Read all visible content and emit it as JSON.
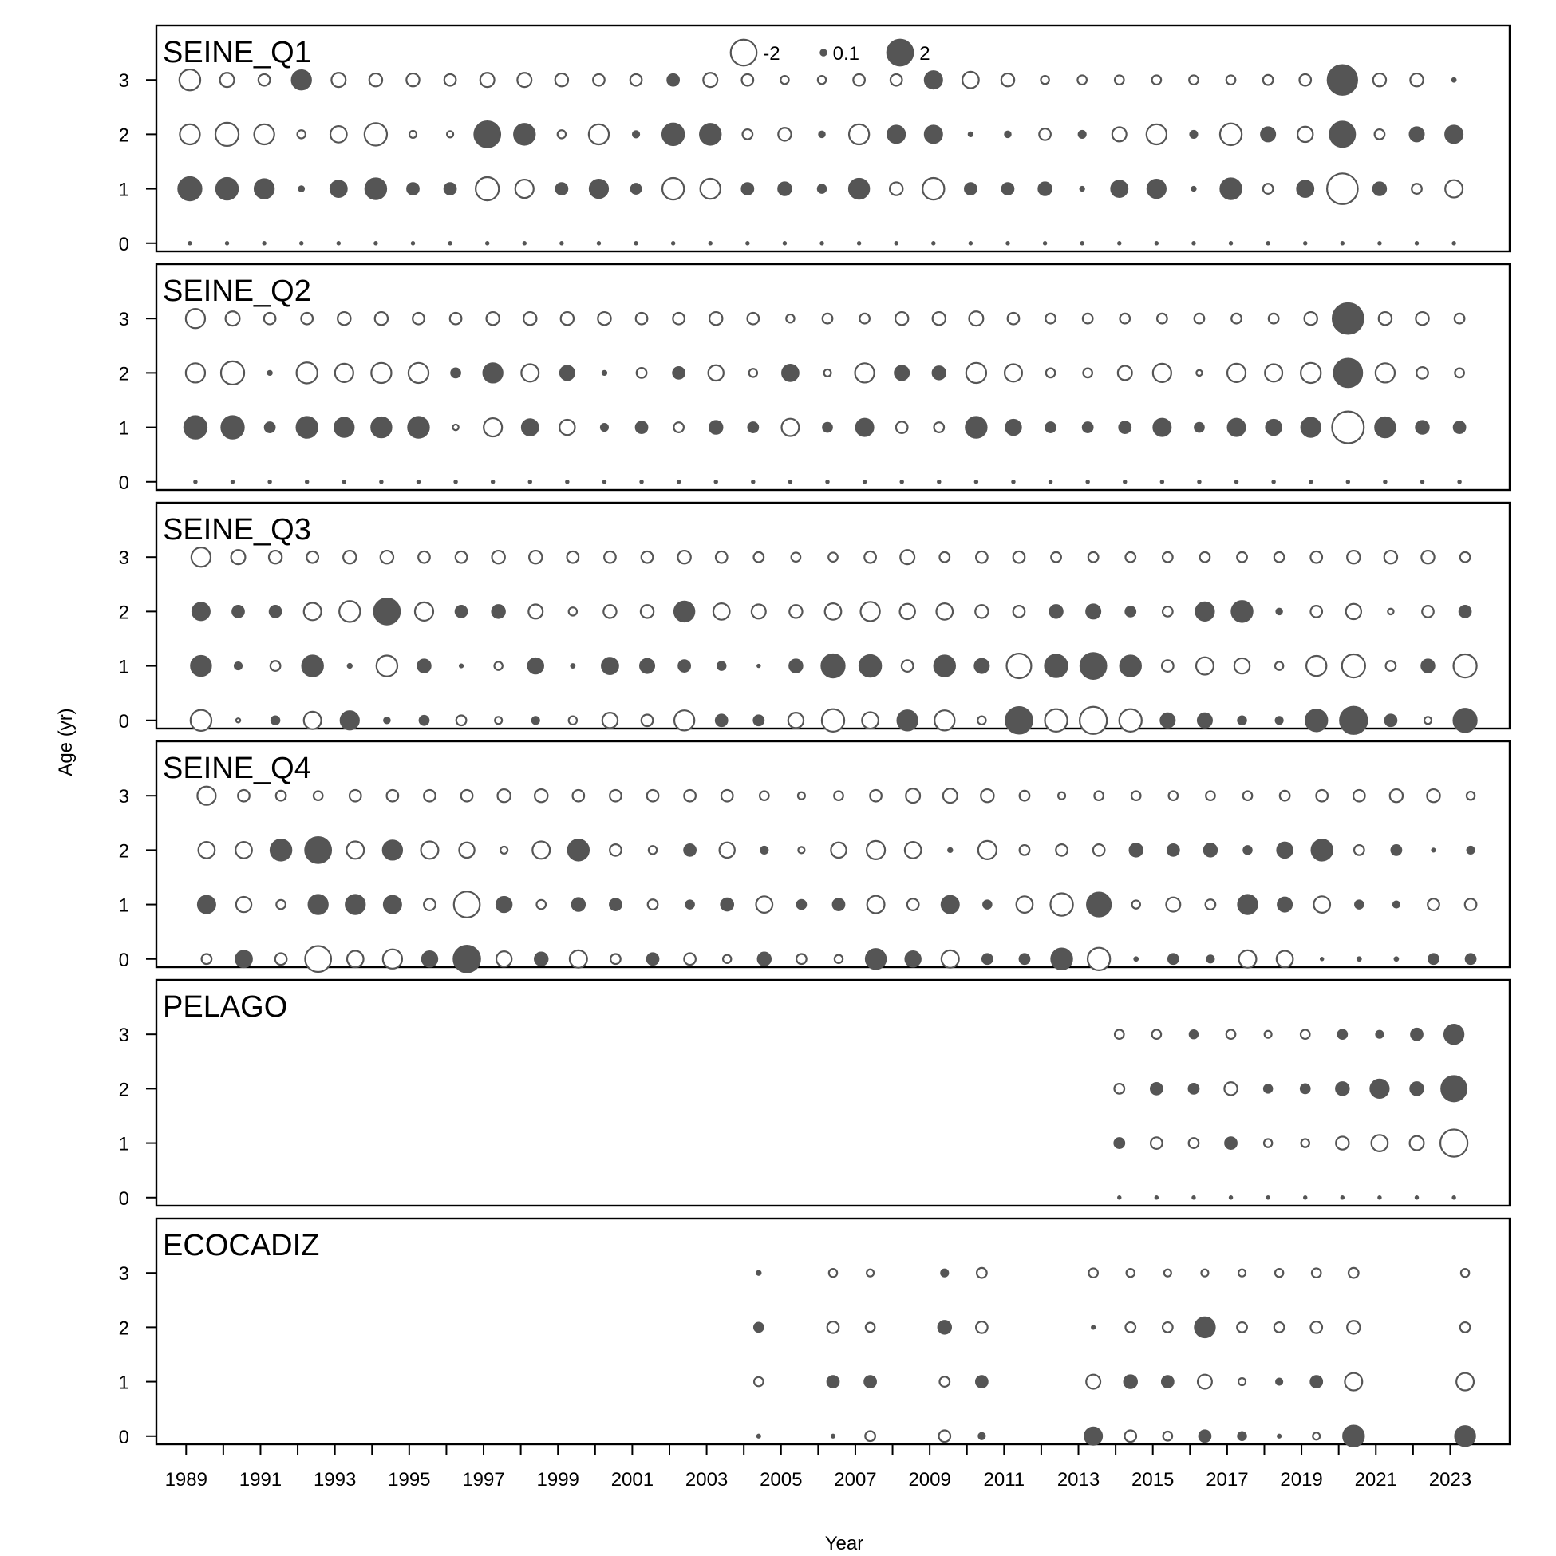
{
  "chart_data": {
    "type": "bubble",
    "xlabel": "Year",
    "ylabel": "Age (yr)",
    "x_ticks": [
      1989,
      1991,
      1993,
      1995,
      1997,
      1999,
      2001,
      2003,
      2005,
      2007,
      2009,
      2011,
      2013,
      2015,
      2017,
      2019,
      2021,
      2023
    ],
    "y_ticks": [
      0,
      1,
      2,
      3
    ],
    "xlim": [
      1988.2,
      2024.6
    ],
    "ylim": [
      -0.15,
      4.0
    ],
    "legend": {
      "position": "top-center",
      "entries": [
        {
          "label": "-2",
          "value": -2,
          "filled": false
        },
        {
          "label": "0.1",
          "value": 0.1,
          "filled": true
        },
        {
          "label": "2",
          "value": 2,
          "filled": true
        }
      ]
    },
    "colors": {
      "positive_fill": "#555555",
      "negative_fill": "#ffffff",
      "stroke": "#555555"
    },
    "panels": [
      {
        "name": "SEINE_Q1",
        "x_offset": 0.1,
        "start_year": 1989,
        "ages": [
          0,
          1,
          2,
          3
        ],
        "residuals": [
          [
            0.02,
            0.02,
            0.02,
            0.02,
            0.02,
            0.02,
            0.02,
            0.02,
            0.02,
            0.02,
            0.02,
            0.02,
            0.02,
            0.02,
            0.02,
            0.02,
            0.02,
            0.02,
            0.02,
            0.02,
            0.02,
            0.02,
            0.02,
            0.02,
            0.02,
            0.02,
            0.02,
            0.02,
            0.02,
            0.02,
            0.02,
            0.02,
            0.02,
            0.02,
            0.02
          ],
          [
            1.6,
            1.4,
            1.1,
            0.08,
            0.8,
            1.3,
            0.4,
            0.4,
            -1.6,
            -1.0,
            0.4,
            1.0,
            0.3,
            -1.4,
            -1.2,
            0.4,
            0.5,
            0.2,
            1.2,
            -0.5,
            -1.4,
            0.4,
            0.4,
            0.5,
            0.05,
            0.8,
            1.0,
            0.05,
            1.3,
            -0.3,
            0.8,
            -2.8,
            0.5,
            -0.3,
            -0.9
          ],
          [
            -1.2,
            -1.6,
            -1.2,
            -0.2,
            -0.8,
            -1.5,
            -0.15,
            -0.12,
            2.0,
            1.3,
            -0.2,
            -1.2,
            0.12,
            1.4,
            1.3,
            -0.3,
            -0.5,
            0.1,
            -1.2,
            0.9,
            0.9,
            0.05,
            0.1,
            -0.4,
            0.15,
            -0.6,
            -1.2,
            0.15,
            -1.4,
            0.6,
            -0.7,
            1.9,
            -0.3,
            0.6,
            0.9
          ],
          [
            -1.3,
            -0.6,
            -0.4,
            1.1,
            -0.6,
            -0.5,
            -0.5,
            -0.4,
            -0.6,
            -0.6,
            -0.5,
            -0.4,
            -0.4,
            0.4,
            -0.6,
            -0.4,
            -0.2,
            -0.2,
            -0.4,
            -0.4,
            0.9,
            -0.8,
            -0.5,
            -0.2,
            -0.25,
            -0.25,
            -0.25,
            -0.25,
            -0.25,
            -0.3,
            -0.4,
            2.6,
            -0.5,
            -0.5,
            0.04
          ]
        ]
      },
      {
        "name": "SEINE_Q2",
        "x_offset": 0.25,
        "start_year": 1989,
        "ages": [
          0,
          1,
          2,
          3
        ],
        "residuals": [
          [
            0.02,
            0.02,
            0.02,
            0.02,
            0.02,
            0.02,
            0.02,
            0.02,
            0.02,
            0.02,
            0.02,
            0.02,
            0.02,
            0.02,
            0.02,
            0.02,
            0.02,
            0.02,
            0.02,
            0.02,
            0.02,
            0.02,
            0.02,
            0.02,
            0.02,
            0.02,
            0.02,
            0.02,
            0.02,
            0.02,
            0.02,
            0.02,
            0.02,
            0.02,
            0.02
          ],
          [
            1.5,
            1.5,
            0.3,
            1.3,
            1.1,
            1.2,
            1.3,
            -0.1,
            -1.0,
            0.8,
            -0.7,
            0.15,
            0.4,
            -0.3,
            0.5,
            0.3,
            -0.9,
            0.25,
            0.9,
            -0.4,
            -0.3,
            1.3,
            0.7,
            0.3,
            0.3,
            0.4,
            0.9,
            0.25,
            0.9,
            0.7,
            1.1,
            -3.0,
            1.2,
            0.5,
            0.4
          ],
          [
            -1.1,
            -1.6,
            0.05,
            -1.3,
            -1.0,
            -1.2,
            -1.2,
            0.25,
            1.1,
            -0.9,
            0.6,
            0.05,
            -0.3,
            0.4,
            -0.7,
            -0.2,
            0.8,
            -0.15,
            -1.1,
            0.6,
            0.5,
            -1.2,
            -0.9,
            -0.25,
            -0.25,
            -0.6,
            -1.0,
            -0.1,
            -1.0,
            -0.9,
            -1.2,
            2.4,
            -1.1,
            -0.4,
            -0.25
          ]
        ],
        "residuals_age3": [
          -1.1,
          -0.6,
          -0.4,
          -0.4,
          -0.5,
          -0.5,
          -0.4,
          -0.4,
          -0.5,
          -0.5,
          -0.5,
          -0.5,
          -0.4,
          -0.4,
          -0.5,
          -0.4,
          -0.2,
          -0.3,
          -0.3,
          -0.5,
          -0.5,
          -0.6,
          -0.4,
          -0.3,
          -0.3,
          -0.3,
          -0.3,
          -0.3,
          -0.3,
          -0.3,
          -0.5,
          2.8,
          -0.5,
          -0.5,
          -0.3
        ]
      },
      {
        "name": "SEINE_Q3",
        "x_offset": 0.4,
        "start_year": 1989,
        "ages": [
          0,
          1,
          2,
          3
        ],
        "residuals": [
          [
            -1.3,
            -0.05,
            0.2,
            -0.9,
            1.0,
            0.1,
            0.25,
            -0.3,
            -0.15,
            0.15,
            -0.2,
            -0.7,
            -0.4,
            -1.2,
            0.4,
            0.3,
            -0.7,
            -1.5,
            -0.8,
            1.2,
            -1.2,
            -0.2,
            2.1,
            -1.5,
            -2.2,
            -1.5,
            0.6,
            0.6,
            0.2,
            0.15,
            1.4,
            2.2,
            0.4,
            -0.15,
            1.6
          ],
          [
            1.2,
            0.15,
            -0.3,
            1.3,
            0.05,
            -1.3,
            0.5,
            0.03,
            -0.2,
            0.7,
            0.04,
            0.8,
            0.6,
            0.4,
            0.2,
            0.02,
            0.5,
            1.6,
            1.4,
            -0.4,
            1.3,
            0.6,
            -1.8,
            1.5,
            2.0,
            1.3,
            -0.4,
            -0.9,
            -0.7,
            -0.2,
            -1.2,
            -1.6,
            -0.3,
            0.5,
            -1.6
          ],
          [
            0.9,
            0.4,
            0.4,
            -0.9,
            -1.3,
            2.0,
            -1.0,
            0.4,
            0.5,
            -0.6,
            -0.2,
            -0.5,
            -0.5,
            1.2,
            -0.8,
            -0.6,
            -0.5,
            -0.8,
            -1.1,
            -0.7,
            -0.8,
            -0.5,
            -0.4,
            0.5,
            0.6,
            0.3,
            -0.3,
            1.0,
            1.3,
            0.1,
            -0.4,
            -0.7,
            -0.1,
            -0.4,
            0.4
          ],
          [
            -1.1,
            -0.6,
            -0.5,
            -0.4,
            -0.5,
            -0.5,
            -0.4,
            -0.4,
            -0.5,
            -0.5,
            -0.4,
            -0.4,
            -0.4,
            -0.5,
            -0.4,
            -0.3,
            -0.25,
            -0.25,
            -0.4,
            -0.6,
            -0.3,
            -0.4,
            -0.4,
            -0.3,
            -0.3,
            -0.3,
            -0.3,
            -0.3,
            -0.3,
            -0.3,
            -0.4,
            -0.5,
            -0.5,
            -0.5,
            -0.3
          ]
        ]
      },
      {
        "name": "SEINE_Q4",
        "x_offset": 0.55,
        "start_year": 1989,
        "ages": [
          0,
          1,
          2,
          3
        ],
        "residuals": [
          [
            -0.3,
            0.8,
            -0.4,
            -2.0,
            -0.8,
            -1.1,
            0.7,
            2.1,
            -0.7,
            0.5,
            -0.9,
            -0.3,
            0.4,
            -0.4,
            -0.2,
            0.5,
            -0.3,
            -0.2,
            1.2,
            0.7,
            -0.9,
            0.3,
            0.3,
            1.3,
            -1.5,
            0.04,
            0.3,
            0.15,
            -0.9,
            -0.8,
            0.02,
            0.04,
            0.04,
            0.3,
            0.3
          ],
          [
            0.9,
            -0.7,
            -0.25,
            1.1,
            1.1,
            0.9,
            -0.4,
            -2.0,
            0.7,
            -0.25,
            0.5,
            0.4,
            -0.3,
            0.2,
            0.45,
            -0.8,
            0.25,
            0.4,
            -0.9,
            -0.4,
            0.9,
            0.2,
            -0.8,
            -1.5,
            1.7,
            -0.2,
            -0.6,
            -0.3,
            1.1,
            0.6,
            -0.8,
            0.2,
            0.12,
            -0.4,
            -0.4
          ],
          [
            -0.8,
            -0.8,
            1.3,
            2.0,
            -0.9,
            1.1,
            -0.9,
            -0.7,
            -0.15,
            -0.9,
            1.3,
            -0.4,
            -0.2,
            0.4,
            -0.7,
            0.15,
            -0.12,
            -0.7,
            -1.0,
            -0.8,
            0.05,
            -1.0,
            -0.3,
            -0.4,
            -0.4,
            0.5,
            0.4,
            0.5,
            0.2,
            0.7,
            1.3,
            -0.3,
            0.3,
            0.03,
            0.15
          ],
          [
            -1.0,
            -0.4,
            -0.3,
            -0.25,
            -0.4,
            -0.4,
            -0.4,
            -0.4,
            -0.5,
            -0.5,
            -0.4,
            -0.4,
            -0.4,
            -0.4,
            -0.4,
            -0.25,
            -0.15,
            -0.25,
            -0.4,
            -0.6,
            -0.6,
            -0.5,
            -0.3,
            -0.15,
            -0.25,
            -0.25,
            -0.25,
            -0.25,
            -0.25,
            -0.3,
            -0.4,
            -0.4,
            -0.5,
            -0.5,
            -0.2
          ]
        ]
      },
      {
        "name": "PELAGO",
        "x_offset": 0.1,
        "years": [
          2014,
          2015,
          2016,
          2017,
          2018,
          2019,
          2020,
          2021,
          2022,
          2023
        ],
        "ages": [
          0,
          1,
          2,
          3
        ],
        "residuals": [
          [
            0.02,
            0.02,
            0.02,
            0.02,
            0.02,
            0.02,
            0.02,
            0.02,
            0.02,
            0.02
          ],
          [
            0.3,
            -0.4,
            -0.3,
            0.4,
            -0.2,
            -0.2,
            -0.5,
            -0.8,
            -0.6,
            -2.2
          ],
          [
            -0.3,
            0.4,
            0.3,
            -0.5,
            0.2,
            0.25,
            0.5,
            1.0,
            0.5,
            1.9
          ],
          [
            -0.25,
            -0.25,
            0.2,
            -0.25,
            -0.15,
            -0.25,
            0.25,
            0.15,
            0.4,
            1.1
          ]
        ]
      },
      {
        "name": "ECOCADIZ",
        "x_offset": 0.4,
        "years": [
          2004,
          2006,
          2007,
          2009,
          2010,
          2013,
          2014,
          2015,
          2016,
          2017,
          2018,
          2019,
          2020,
          2023
        ],
        "ages": [
          0,
          1,
          2,
          3
        ],
        "residuals": [
          [
            0.03,
            0.03,
            -0.3,
            -0.4,
            0.12,
            0.9,
            -0.4,
            -0.25,
            0.4,
            0.2,
            0.03,
            -0.15,
            1.3,
            1.2
          ],
          [
            -0.25,
            0.4,
            0.4,
            -0.3,
            0.4,
            -0.6,
            0.5,
            0.4,
            -0.6,
            -0.15,
            0.12,
            0.4,
            -0.9,
            -0.9
          ],
          [
            0.25,
            -0.4,
            -0.25,
            0.5,
            -0.4,
            0.03,
            -0.3,
            -0.3,
            1.2,
            -0.3,
            -0.3,
            -0.4,
            -0.5,
            -0.3
          ],
          [
            0.05,
            -0.2,
            -0.15,
            0.15,
            -0.3,
            -0.25,
            -0.2,
            -0.15,
            -0.15,
            -0.15,
            -0.2,
            -0.25,
            -0.3,
            -0.2
          ]
        ]
      }
    ]
  }
}
